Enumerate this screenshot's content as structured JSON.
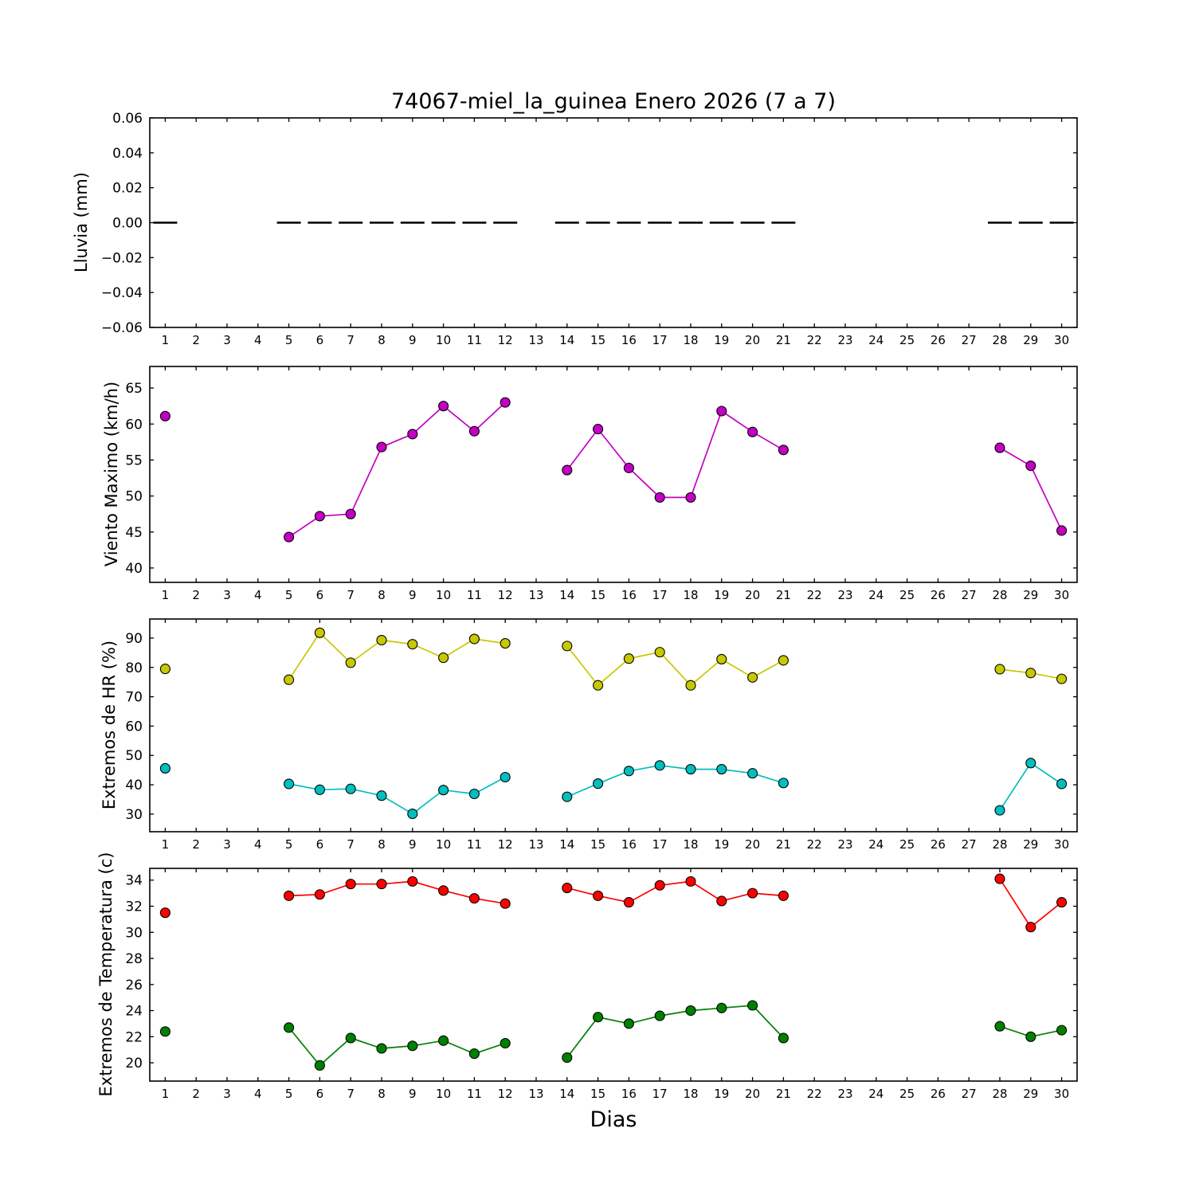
{
  "title": "74067-miel_la_guinea Enero 2026  (7 a 7)",
  "xlabel": "Dias",
  "x_axis": {
    "range": [
      0.5,
      30.5
    ],
    "tick_days": [
      1,
      2,
      3,
      4,
      5,
      6,
      7,
      8,
      9,
      10,
      11,
      12,
      13,
      14,
      15,
      16,
      17,
      18,
      19,
      20,
      21,
      22,
      23,
      24,
      25,
      26,
      27,
      28,
      29,
      30
    ],
    "days_with_data": [
      1,
      5,
      6,
      7,
      8,
      9,
      10,
      11,
      12,
      14,
      15,
      16,
      17,
      18,
      19,
      20,
      21,
      28,
      29,
      30
    ]
  },
  "colors": {
    "lluvia": "#000000",
    "viento": "#c400c4",
    "hr_max": "#c8c800",
    "hr_min": "#00bfbf",
    "temp_max": "#ff0000",
    "temp_min": "#008000",
    "frame": "#000000"
  },
  "chart_data": [
    {
      "panel": "lluvia",
      "type": "line",
      "ylabel": "Lluvia (mm)",
      "ylim": [
        -0.06,
        0.06
      ],
      "ytick_values": [
        0.06,
        0.04,
        0.02,
        0.0,
        -0.02,
        -0.04,
        -0.06
      ],
      "ytick_labels": [
        "0.06",
        "0.04",
        "0.02",
        "0.00",
        "−0.02",
        "−0.04",
        "−0.06"
      ],
      "series": [
        {
          "name": "lluvia",
          "color": "#000000",
          "marker": "dash",
          "line": "none",
          "x": [
            1,
            5,
            6,
            7,
            8,
            9,
            10,
            11,
            12,
            14,
            15,
            16,
            17,
            18,
            19,
            20,
            21,
            28,
            29,
            30
          ],
          "y": [
            0,
            0,
            0,
            0,
            0,
            0,
            0,
            0,
            0,
            0,
            0,
            0,
            0,
            0,
            0,
            0,
            0,
            0,
            0,
            0
          ]
        }
      ]
    },
    {
      "panel": "viento",
      "type": "line",
      "ylabel": "Viento Maximo (km/h)",
      "ylim": [
        38,
        68
      ],
      "ytick_values": [
        40,
        45,
        50,
        55,
        60,
        65
      ],
      "ytick_labels": [
        "40",
        "45",
        "50",
        "55",
        "60",
        "65"
      ],
      "series": [
        {
          "name": "viento_maximo",
          "color": "#c400c4",
          "marker": "circle",
          "line": "solid",
          "x": [
            1,
            5,
            6,
            7,
            8,
            9,
            10,
            11,
            12,
            14,
            15,
            16,
            17,
            18,
            19,
            20,
            21,
            28,
            29,
            30
          ],
          "y": [
            61.1,
            44.3,
            47.2,
            47.5,
            56.8,
            58.6,
            62.5,
            59.0,
            63.0,
            53.6,
            59.3,
            53.9,
            49.8,
            49.8,
            61.8,
            58.9,
            56.4,
            56.7,
            54.2,
            45.2
          ]
        }
      ]
    },
    {
      "panel": "hr",
      "type": "line",
      "ylabel": "Extremos de HR (%)",
      "ylim": [
        24,
        96.5
      ],
      "ytick_values": [
        30,
        40,
        50,
        60,
        70,
        80,
        90
      ],
      "ytick_labels": [
        "30",
        "40",
        "50",
        "60",
        "70",
        "80",
        "90"
      ],
      "series": [
        {
          "name": "hr_maxima",
          "color": "#c8c800",
          "marker": "circle",
          "line": "solid",
          "x": [
            1,
            5,
            6,
            7,
            8,
            9,
            10,
            11,
            12,
            14,
            15,
            16,
            17,
            18,
            19,
            20,
            21,
            28,
            29,
            30
          ],
          "y": [
            79.5,
            75.8,
            91.8,
            81.6,
            89.3,
            87.9,
            83.3,
            89.7,
            88.2,
            87.3,
            73.9,
            83.0,
            85.2,
            73.9,
            82.8,
            76.6,
            82.4,
            79.4,
            78.1,
            76.1
          ]
        },
        {
          "name": "hr_minima",
          "color": "#00bfbf",
          "marker": "circle",
          "line": "solid",
          "x": [
            1,
            5,
            6,
            7,
            8,
            9,
            10,
            11,
            12,
            14,
            15,
            16,
            17,
            18,
            19,
            20,
            21,
            28,
            29,
            30
          ],
          "y": [
            45.6,
            40.3,
            38.3,
            38.6,
            36.3,
            30.1,
            38.2,
            36.9,
            42.6,
            35.9,
            40.4,
            44.7,
            46.6,
            45.3,
            45.3,
            43.9,
            40.6,
            31.3,
            47.4,
            40.3
          ]
        }
      ]
    },
    {
      "panel": "temperatura",
      "type": "line",
      "ylabel": "Extremos de Temperatura (c)",
      "ylim": [
        18.6,
        34.9
      ],
      "ytick_values": [
        20,
        22,
        24,
        26,
        28,
        30,
        32,
        34
      ],
      "ytick_labels": [
        "20",
        "22",
        "24",
        "26",
        "28",
        "30",
        "32",
        "34"
      ],
      "series": [
        {
          "name": "temp_maxima",
          "color": "#ff0000",
          "marker": "circle",
          "line": "solid",
          "x": [
            1,
            5,
            6,
            7,
            8,
            9,
            10,
            11,
            12,
            14,
            15,
            16,
            17,
            18,
            19,
            20,
            21,
            28,
            29,
            30
          ],
          "y": [
            31.5,
            32.8,
            32.9,
            33.7,
            33.7,
            33.9,
            33.2,
            32.6,
            32.2,
            33.4,
            32.8,
            32.3,
            33.6,
            33.9,
            32.4,
            33.0,
            32.8,
            34.1,
            30.4,
            32.3
          ]
        },
        {
          "name": "temp_minima",
          "color": "#008000",
          "marker": "circle",
          "line": "solid",
          "x": [
            1,
            5,
            6,
            7,
            8,
            9,
            10,
            11,
            12,
            14,
            15,
            16,
            17,
            18,
            19,
            20,
            21,
            28,
            29,
            30
          ],
          "y": [
            22.4,
            22.7,
            19.8,
            21.9,
            21.1,
            21.3,
            21.7,
            20.7,
            21.5,
            20.4,
            23.5,
            23.0,
            23.6,
            24.0,
            24.2,
            24.4,
            21.9,
            22.8,
            22.0,
            22.5
          ]
        }
      ]
    }
  ]
}
